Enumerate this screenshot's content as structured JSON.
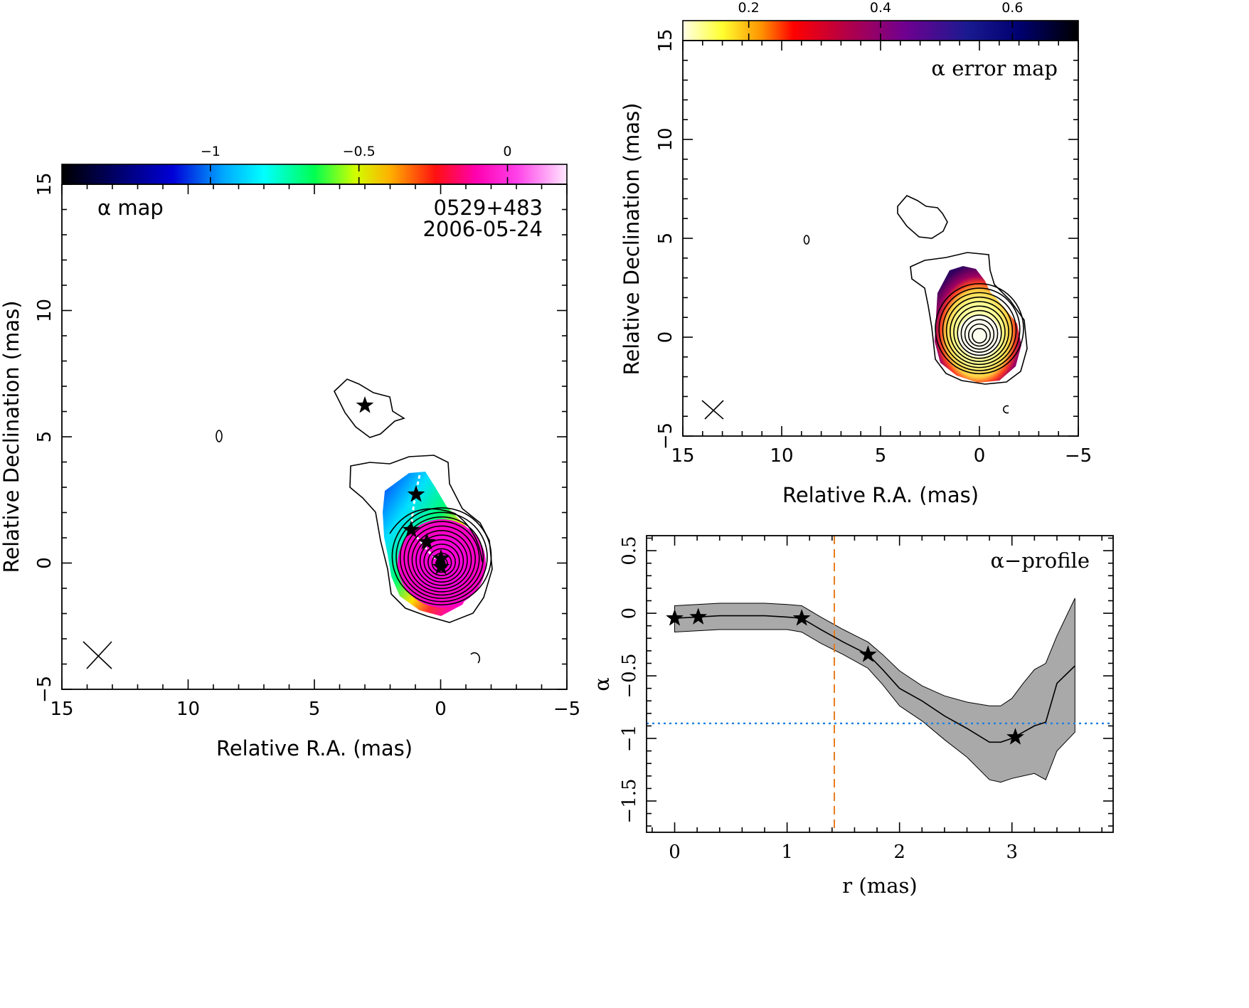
{
  "chart_data": [
    {
      "type": "heatmap",
      "title": "α map",
      "source": "0529+483",
      "epoch": "2006-05-24",
      "xlabel": "Relative R.A. (mas)",
      "ylabel": "Relative Declination (mas)",
      "xlim": [
        15,
        -5
      ],
      "ylim": [
        -5,
        15
      ],
      "xticks": [
        "15",
        "10",
        "5",
        "0",
        "−5"
      ],
      "yticks": [
        "−5",
        "0",
        "5",
        "10",
        "15"
      ],
      "colorbar": {
        "min": -1.5,
        "max": 0.2,
        "ticks": [
          "−1",
          "−0.5",
          "0"
        ],
        "tick_values": [
          -1,
          -0.5,
          0
        ],
        "colormap": [
          "#000000",
          "#0000c8",
          "#00b4ff",
          "#00ffff",
          "#00ff60",
          "#c8ff00",
          "#ffd000",
          "#ff5000",
          "#ff0050",
          "#ff00c8",
          "#ffffff"
        ]
      },
      "components": [
        {
          "x": 0.0,
          "y": 0.0
        },
        {
          "x": 0.6,
          "y": 0.8
        },
        {
          "x": 1.2,
          "y": 1.3
        },
        {
          "x": 1.0,
          "y": 2.7
        },
        {
          "x": 3.0,
          "y": 6.3
        }
      ]
    },
    {
      "type": "heatmap",
      "title": "α error map",
      "xlabel": "Relative R.A. (mas)",
      "ylabel": "Relative Declination (mas)",
      "xlim": [
        15,
        -5
      ],
      "ylim": [
        -5,
        15
      ],
      "xticks": [
        "15",
        "10",
        "5",
        "0",
        "−5"
      ],
      "yticks": [
        "−5",
        "0",
        "5",
        "10",
        "15"
      ],
      "colorbar": {
        "min": 0.1,
        "max": 0.7,
        "ticks": [
          "0.2",
          "0.4",
          "0.6"
        ],
        "tick_values": [
          0.2,
          0.4,
          0.6
        ],
        "colormap": [
          "#ffffe0",
          "#ffff40",
          "#ffa000",
          "#ff0000",
          "#c00040",
          "#800080",
          "#401090",
          "#000080",
          "#000000"
        ]
      }
    },
    {
      "type": "line",
      "title": "α−profile",
      "xlabel": "r (mas)",
      "ylabel": "α",
      "xlim": [
        -0.25,
        3.9
      ],
      "ylim": [
        -1.75,
        0.62
      ],
      "xticks": [
        "0",
        "1",
        "2",
        "3"
      ],
      "yticks": [
        "0.5",
        "0",
        "−0.5",
        "−1",
        "−1.5"
      ],
      "series": [
        {
          "x": [
            0,
            0.2,
            0.4,
            0.6,
            0.8,
            1.0,
            1.13,
            1.3,
            1.5,
            1.72,
            1.85,
            2.0,
            2.2,
            2.4,
            2.6,
            2.8,
            2.9,
            3.0,
            3.1,
            3.2,
            3.3,
            3.4,
            3.56
          ],
          "values": [
            -0.04,
            -0.03,
            -0.02,
            -0.02,
            -0.02,
            -0.03,
            -0.04,
            -0.13,
            -0.23,
            -0.33,
            -0.45,
            -0.6,
            -0.7,
            -0.82,
            -0.92,
            -1.03,
            -1.03,
            -1.0,
            -0.95,
            -0.9,
            -0.87,
            -0.56,
            -0.42
          ],
          "err_upper": [
            0.06,
            0.07,
            0.08,
            0.08,
            0.08,
            0.07,
            0.06,
            -0.03,
            -0.13,
            -0.23,
            -0.33,
            -0.46,
            -0.58,
            -0.66,
            -0.71,
            -0.74,
            -0.74,
            -0.68,
            -0.56,
            -0.45,
            -0.4,
            -0.18,
            0.12
          ],
          "err_lower": [
            -0.15,
            -0.14,
            -0.13,
            -0.13,
            -0.13,
            -0.13,
            -0.15,
            -0.24,
            -0.33,
            -0.44,
            -0.57,
            -0.74,
            -0.86,
            -1.01,
            -1.15,
            -1.33,
            -1.35,
            -1.32,
            -1.3,
            -1.28,
            -1.33,
            -1.1,
            -0.95
          ]
        }
      ],
      "star_markers": [
        {
          "x": 0.0,
          "y": -0.04
        },
        {
          "x": 0.21,
          "y": -0.03
        },
        {
          "x": 1.13,
          "y": -0.04
        },
        {
          "x": 1.72,
          "y": -0.33
        },
        {
          "x": 3.03,
          "y": -0.99
        }
      ],
      "vline": {
        "x": 1.42,
        "color": "#e87d1e",
        "style": "dashed"
      },
      "hline": {
        "y": -0.88,
        "color": "#1e7fe0",
        "style": "dotted"
      }
    }
  ]
}
